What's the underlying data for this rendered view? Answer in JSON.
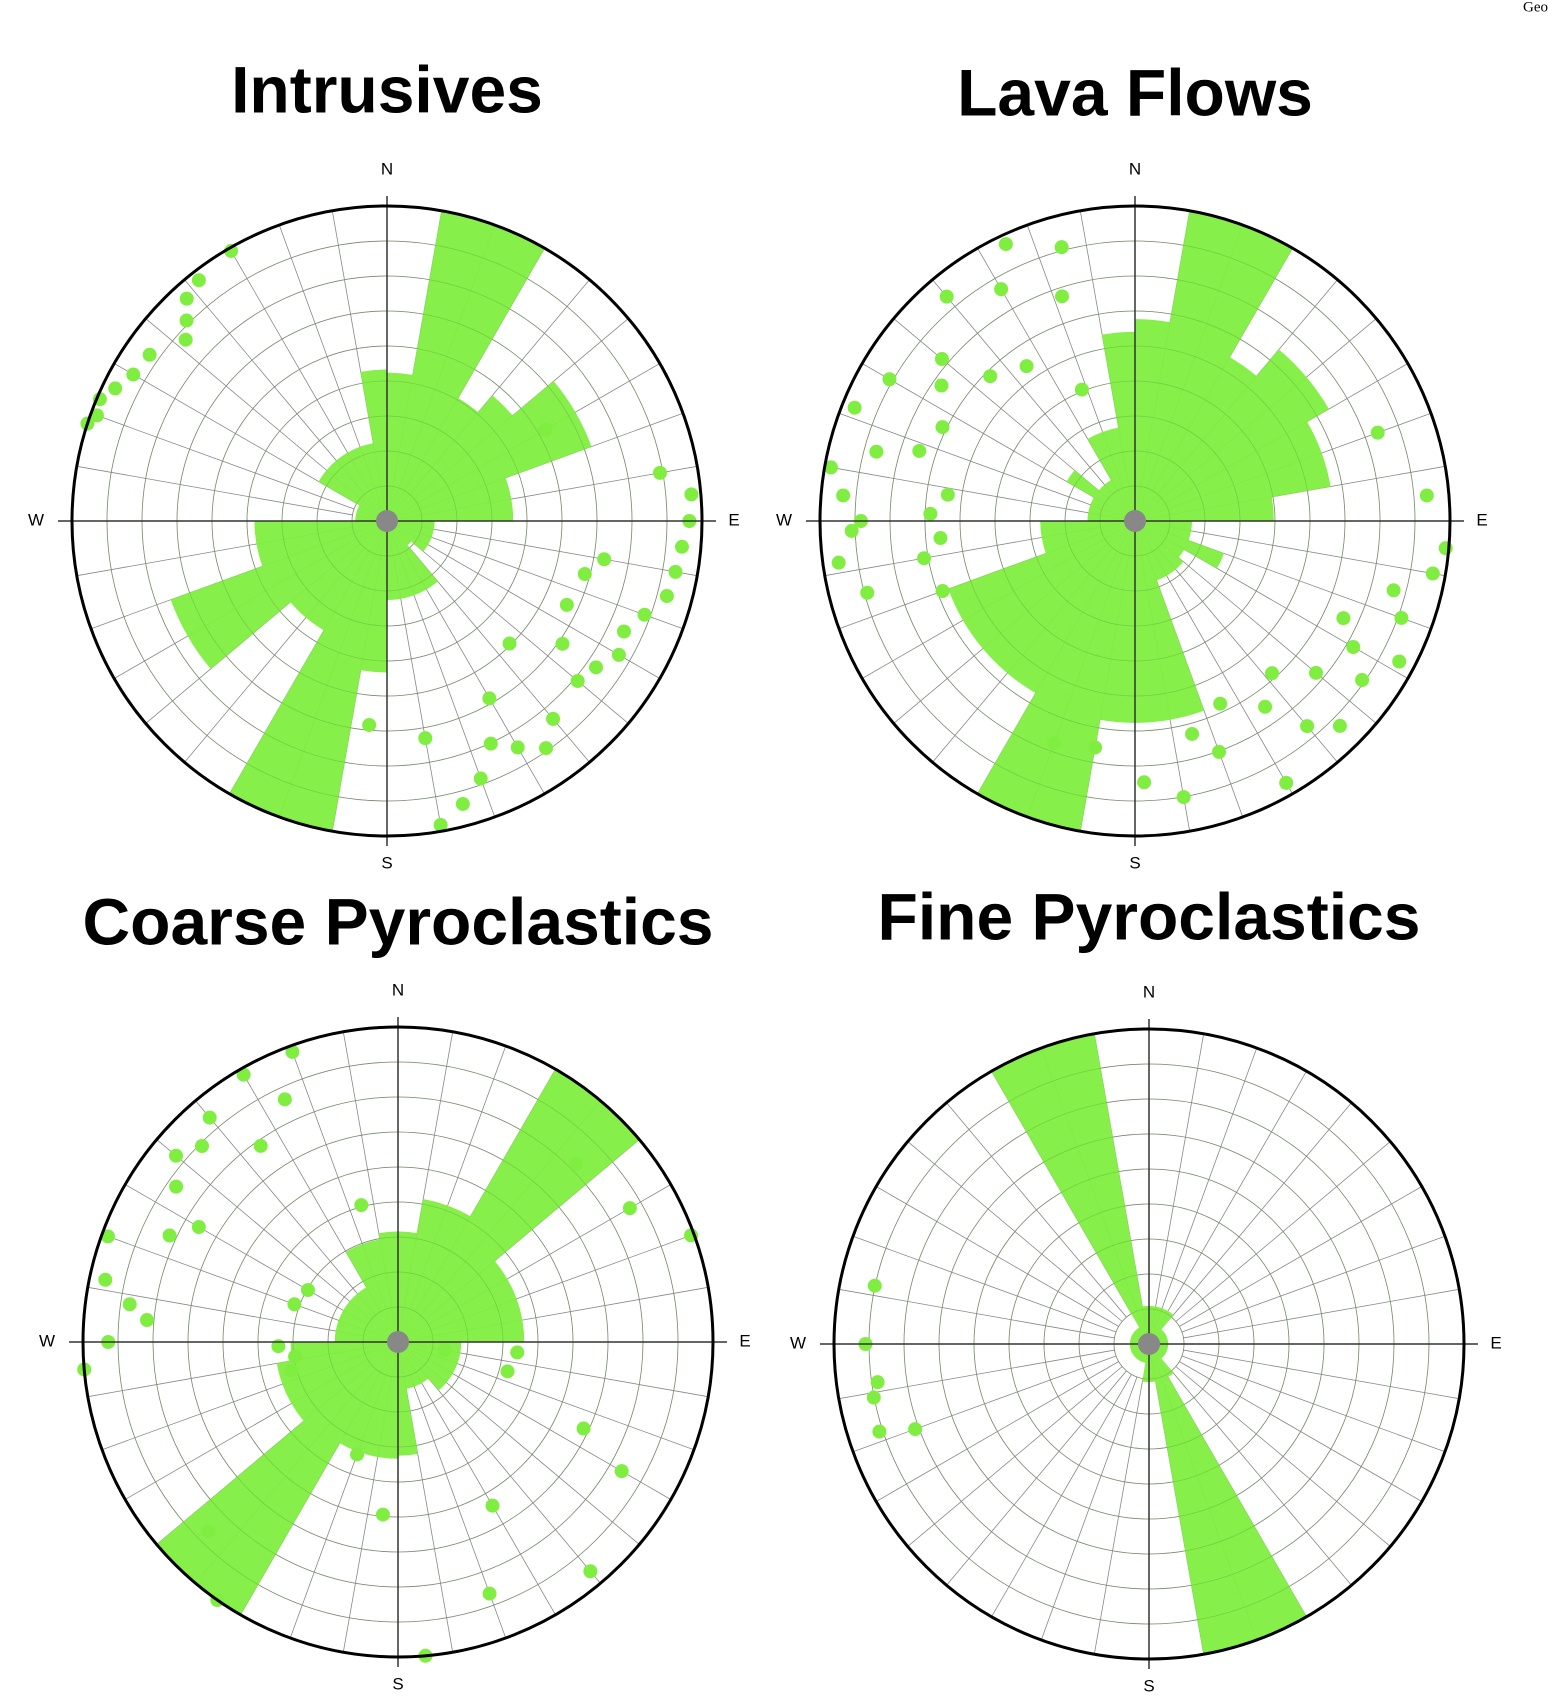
{
  "corner_text": "Geo",
  "chart_data": [
    {
      "type": "rose",
      "title": "Intrusives",
      "directions": [
        "N",
        "E",
        "S",
        "W"
      ],
      "color": "#80ee40",
      "xlim": [
        0,
        360
      ],
      "ylim": [
        0,
        10
      ],
      "values": [
        4.7,
        10,
        10,
        4.5,
        5.2,
        6.9,
        6.9,
        4,
        4,
        1.5,
        1.5,
        1.5,
        1.5,
        1,
        2.5,
        2.5,
        2.5,
        2.5,
        4.8,
        10,
        10,
        4,
        4,
        7.3,
        7.3,
        4.2,
        4.2,
        1,
        1,
        1,
        2.5,
        2.5,
        2.5,
        2.5,
        2.5,
        4.8
      ],
      "points": {
        "color": "#80ee40",
        "azimuth": [
          288,
          290,
          293,
          296,
          300,
          305,
          312,
          315,
          318,
          322,
          330,
          60,
          80,
          85,
          90,
          95,
          100,
          100,
          105,
          105,
          110,
          115,
          115,
          120,
          125,
          125,
          130,
          135,
          140,
          145,
          150,
          150,
          155,
          160,
          165,
          170,
          170,
          185
        ],
        "radius": [
          10,
          9.8,
          9.9,
          9.6,
          9.3,
          9.2,
          8.6,
          9.0,
          9.5,
          9.7,
          9.9,
          5.8,
          8.8,
          9.7,
          9.6,
          9.4,
          9.3,
          7.0,
          9.2,
          6.5,
          8.7,
          8.3,
          6.3,
          8.5,
          8.1,
          6.8,
          7.9,
          5.5,
          8.2,
          8.8,
          8.3,
          6.5,
          7.8,
          8.7,
          9.3,
          9.8,
          7.0,
          6.5
        ]
      }
    },
    {
      "type": "rose",
      "title": "Lava Flows",
      "directions": [
        "N",
        "E",
        "S",
        "W"
      ],
      "color": "#80ee40",
      "xlim": [
        0,
        360
      ],
      "ylim": [
        0,
        10
      ],
      "values": [
        6.4,
        10,
        10,
        6,
        7.1,
        7.1,
        6.3,
        6.3,
        4.4,
        1.8,
        1.8,
        3,
        1.8,
        2,
        2,
        2,
        6.4,
        6.4,
        6.4,
        10,
        10,
        6.3,
        6.3,
        6.3,
        6.3,
        3,
        3,
        1.5,
        1.5,
        1.5,
        2.5,
        1.5,
        1.5,
        3,
        3,
        6
      ],
      "points": {
        "color": "#80ee40",
        "azimuth": [
          250,
          255,
          260,
          262,
          265,
          268,
          270,
          272,
          275,
          278,
          280,
          285,
          288,
          292,
          296,
          300,
          305,
          310,
          315,
          320,
          325,
          330,
          335,
          338,
          342,
          345,
          70,
          85,
          95,
          100,
          105,
          110,
          115,
          118,
          120,
          125,
          130,
          135,
          138,
          140,
          145,
          150,
          155,
          160,
          165,
          170,
          178,
          190,
          200
        ],
        "radius": [
          6.5,
          8.8,
          6.8,
          9.5,
          6.2,
          9.0,
          8.7,
          6.5,
          9.3,
          6.0,
          9.8,
          8.5,
          7.2,
          9.6,
          6.8,
          9.0,
          7.5,
          8.0,
          6.5,
          9.3,
          6.0,
          8.5,
          9.7,
          4.5,
          7.5,
          9.0,
          8.2,
          9.3,
          9.9,
          9.6,
          8.5,
          9.0,
          7.3,
          9.5,
          8.0,
          8.8,
          7.5,
          9.2,
          6.5,
          8.5,
          7.2,
          9.6,
          6.4,
          7.8,
          7.0,
          8.9,
          8.3,
          7.3,
          7.5
        ]
      }
    },
    {
      "type": "rose",
      "title": "Coarse Pyroclastics",
      "directions": [
        "N",
        "E",
        "S",
        "W"
      ],
      "color": "#80ee40",
      "xlim": [
        0,
        360
      ],
      "ylim": [
        0,
        10
      ],
      "values": [
        3.5,
        4.6,
        4.6,
        10,
        10,
        4,
        4,
        4,
        4,
        2,
        2,
        2,
        2,
        2,
        1.5,
        1.5,
        1.5,
        3.6,
        3.7,
        3.7,
        3.7,
        10,
        10,
        3.9,
        3.9,
        3.9,
        3.4,
        2,
        2,
        2,
        2,
        2,
        2,
        3.3,
        3.3,
        3.5
      ],
      "points": {
        "color": "#80ee40",
        "azimuth": [
          265,
          270,
          275,
          278,
          282,
          290,
          295,
          300,
          305,
          310,
          315,
          320,
          325,
          330,
          335,
          340,
          345,
          225,
          215,
          200,
          185,
          175,
          160,
          150,
          140,
          120,
          115,
          105,
          95,
          100,
          60,
          45,
          70,
          255,
          262,
          268,
          290,
          300
        ],
        "radius": [
          10,
          9.2,
          8.0,
          8.6,
          9.5,
          9.8,
          8.0,
          7.3,
          8.6,
          9.2,
          8.8,
          9.3,
          7.6,
          9.8,
          8.5,
          9.8,
          4.5,
          8.5,
          10,
          3.8,
          5.5,
          10,
          8.5,
          6.0,
          9.5,
          8.2,
          6.5,
          3.6,
          3.8,
          1.5,
          8.5,
          8.0,
          9.9,
          3.5,
          3.3,
          3.8,
          3.5,
          3.3
        ]
      }
    },
    {
      "type": "rose",
      "title": "Fine Pyroclastics",
      "directions": [
        "N",
        "E",
        "S",
        "W"
      ],
      "color": "#80ee40",
      "xlim": [
        0,
        360
      ],
      "ylim": [
        0,
        10
      ],
      "values": [
        1.2,
        1.2,
        1.2,
        1.2,
        0.6,
        0.6,
        0.6,
        0.6,
        0.6,
        0.6,
        0.6,
        0.6,
        0.6,
        0.6,
        1.2,
        10,
        10,
        1.2,
        1.2,
        0.6,
        0.6,
        0.6,
        0.6,
        0.6,
        0.6,
        0.6,
        0.6,
        0.6,
        0.6,
        0.6,
        0.6,
        0.6,
        0.6,
        10,
        10,
        1.2
      ],
      "points": {
        "color": "#80ee40",
        "azimuth": [
          282,
          270,
          259,
          262,
          252,
          250
        ],
        "radius": [
          8.9,
          9.0,
          8.9,
          8.7,
          9.0,
          7.9
        ]
      }
    }
  ]
}
